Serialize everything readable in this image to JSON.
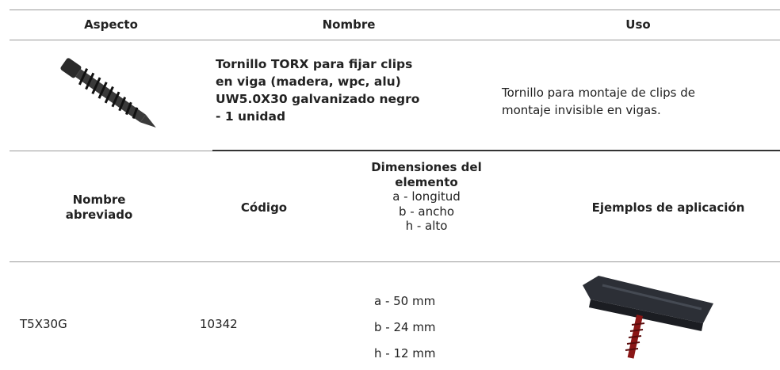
{
  "product_table": {
    "headers": [
      "Aspecto",
      "Nombre",
      "Uso"
    ],
    "name_lines": [
      "Tornillo TORX para fijar clips",
      "en viga (madera, wpc, alu)",
      "UW5.0X30 galvanizado negro",
      "- 1 unidad"
    ],
    "use_lines": [
      "Tornillo para montaje de clips de",
      "montaje invisible en vigas."
    ]
  },
  "detail_table": {
    "headers": {
      "short_name": [
        "Nombre",
        "abreviado"
      ],
      "code": "Código",
      "dimensions": [
        "Dimensiones del",
        "elemento"
      ],
      "dimension_legend": [
        "a - longitud",
        "b - ancho",
        "h - alto"
      ],
      "examples": "Ejemplos de aplicación"
    },
    "row": {
      "short_name": "T5X30G",
      "code": "10342",
      "dimensions": [
        "a - 50 mm",
        "b - 24 mm",
        "h - 12 mm"
      ]
    }
  }
}
